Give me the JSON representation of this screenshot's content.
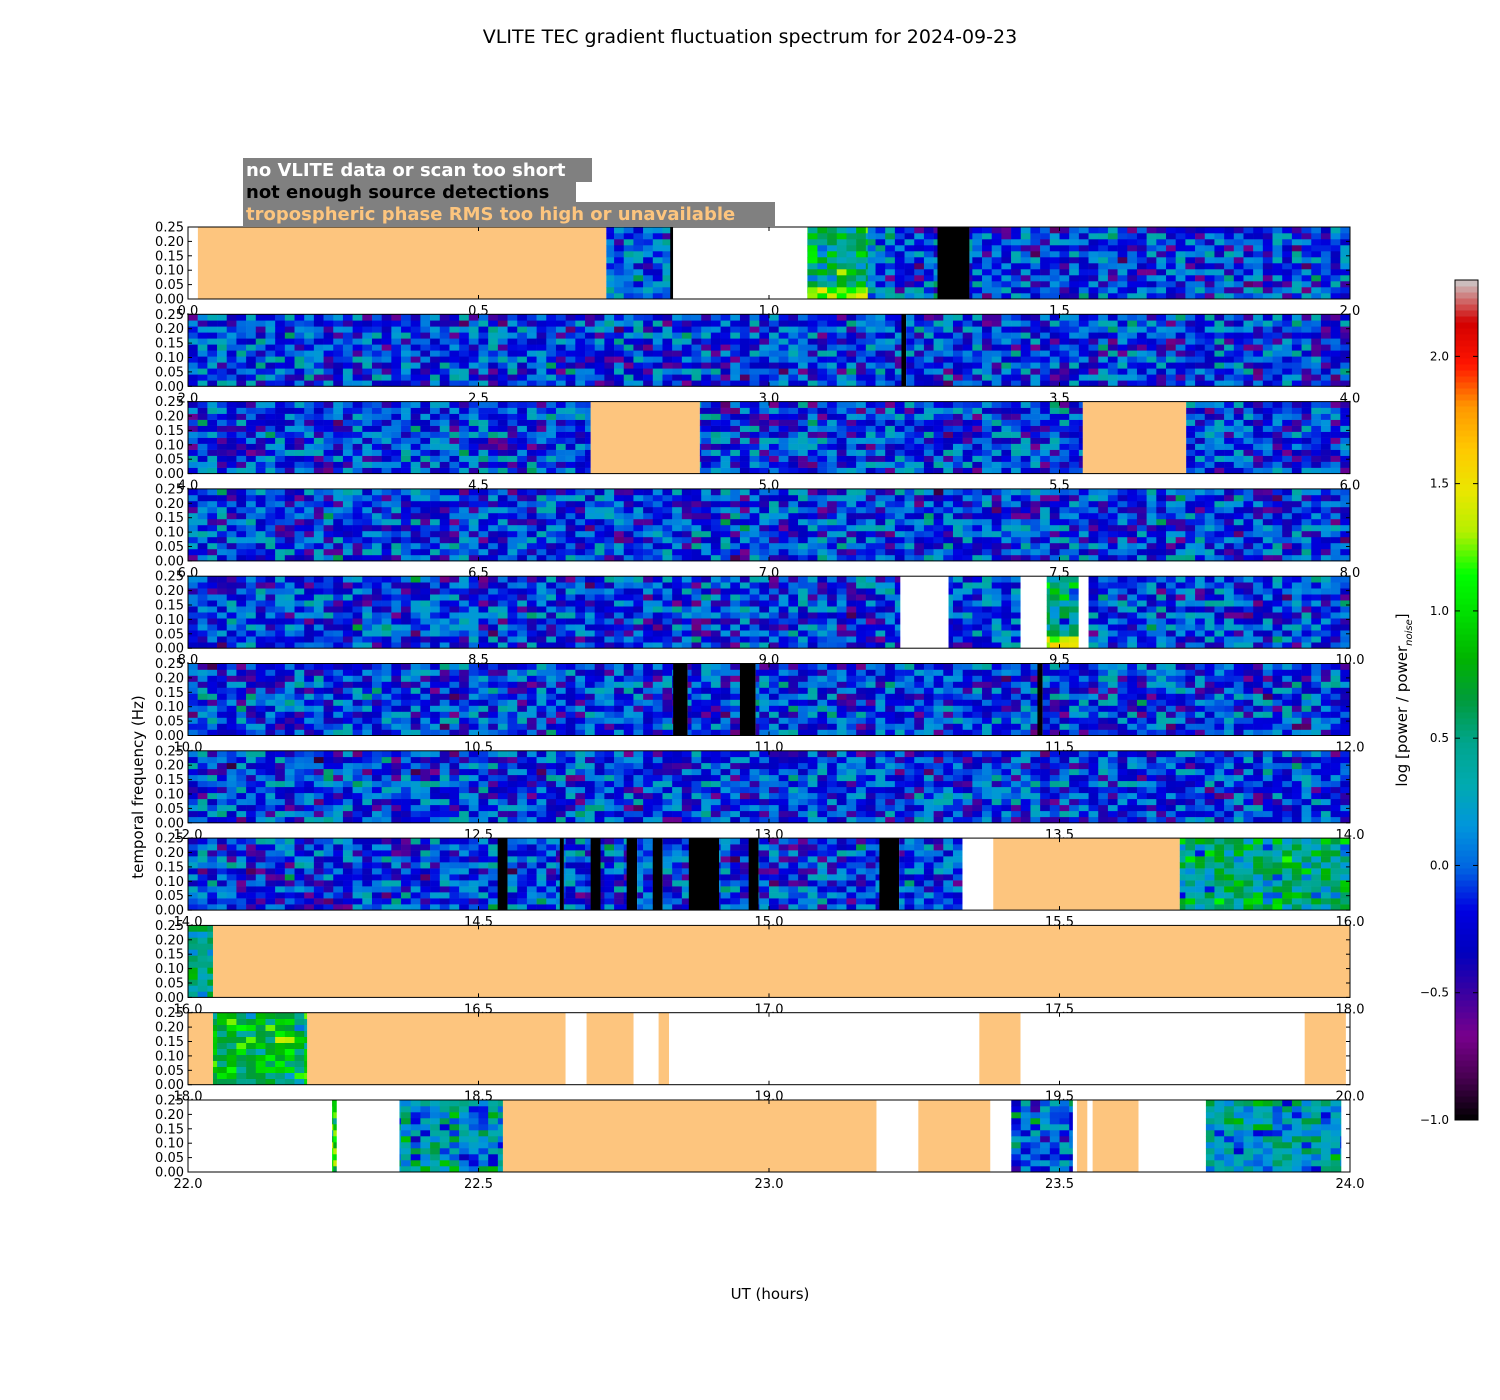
{
  "chart_data": {
    "type": "heatmap",
    "title": "VLITE TEC gradient fluctuation spectrum for 2024-09-23",
    "xlabel": "UT (hours)",
    "ylabel": "temporal frequency (Hz)",
    "ylim": [
      0,
      0.25
    ],
    "y_ticks": [
      "0.00",
      "0.05",
      "0.10",
      "0.15",
      "0.20",
      "0.25"
    ],
    "colorbar": {
      "label": "log [power / power",
      "label_subscript": "noise",
      "label_suffix": "]",
      "range": [
        -1.0,
        2.3
      ],
      "ticks": [
        "−1.0",
        "−0.5",
        "0.0",
        "0.5",
        "1.0",
        "1.5",
        "2.0"
      ],
      "tick_values": [
        -1.0,
        -0.5,
        0.0,
        0.5,
        1.0,
        1.5,
        2.0
      ]
    },
    "legend": {
      "placement": "top-left",
      "background": "#808080",
      "entries": [
        {
          "label": "no VLITE data or scan too short",
          "color": "#ffffff",
          "category": "no_data"
        },
        {
          "label": "not enough source detections",
          "color": "#000000",
          "category": "few_detections"
        },
        {
          "label": "tropospheric phase RMS too high or unavailable",
          "color": "#fdc57e",
          "category": "tropo"
        }
      ]
    },
    "panels": [
      {
        "x_range": [
          0,
          2
        ],
        "x_ticks": [
          "0.0",
          "0.5",
          "1.0",
          "1.5",
          "2.0"
        ],
        "segments": [
          {
            "start": 0.0,
            "end": 0.017,
            "state": "no_data"
          },
          {
            "start": 0.017,
            "end": 0.72,
            "state": "tropo"
          },
          {
            "start": 0.72,
            "end": 0.83,
            "state": "data",
            "level": 0.0
          },
          {
            "start": 0.83,
            "end": 0.835,
            "state": "few_detections"
          },
          {
            "start": 0.835,
            "end": 1.066,
            "state": "no_data"
          },
          {
            "start": 1.066,
            "end": 1.17,
            "state": "data",
            "level": 0.6,
            "hot_low": 1.2
          },
          {
            "start": 1.17,
            "end": 1.29,
            "state": "data",
            "level": 0.0
          },
          {
            "start": 1.29,
            "end": 1.345,
            "state": "few_detections"
          },
          {
            "start": 1.345,
            "end": 2.0,
            "state": "data",
            "level": -0.1
          }
        ]
      },
      {
        "x_range": [
          2,
          4
        ],
        "x_ticks": [
          "2.0",
          "2.5",
          "3.0",
          "3.5",
          "4.0"
        ],
        "segments": [
          {
            "start": 2.0,
            "end": 3.228,
            "state": "data",
            "level": -0.1
          },
          {
            "start": 3.228,
            "end": 3.236,
            "state": "few_detections"
          },
          {
            "start": 3.236,
            "end": 4.0,
            "state": "data",
            "level": -0.1
          }
        ]
      },
      {
        "x_range": [
          4,
          6
        ],
        "x_ticks": [
          "4.0",
          "4.5",
          "5.0",
          "5.5",
          "6.0"
        ],
        "segments": [
          {
            "start": 4.0,
            "end": 4.693,
            "state": "data",
            "level": -0.1
          },
          {
            "start": 4.693,
            "end": 4.881,
            "state": "tropo"
          },
          {
            "start": 4.881,
            "end": 5.54,
            "state": "data",
            "level": -0.1
          },
          {
            "start": 5.54,
            "end": 5.718,
            "state": "tropo"
          },
          {
            "start": 5.718,
            "end": 6.0,
            "state": "data",
            "level": -0.1
          }
        ]
      },
      {
        "x_range": [
          6,
          8
        ],
        "x_ticks": [
          "6.0",
          "6.5",
          "7.0",
          "7.5",
          "8.0"
        ],
        "segments": [
          {
            "start": 6.0,
            "end": 8.0,
            "state": "data",
            "level": -0.1
          }
        ]
      },
      {
        "x_range": [
          8,
          10
        ],
        "x_ticks": [
          "8.0",
          "8.5",
          "9.0",
          "9.5",
          "10.0"
        ],
        "segments": [
          {
            "start": 8.0,
            "end": 9.226,
            "state": "data",
            "level": -0.1
          },
          {
            "start": 9.226,
            "end": 9.309,
            "state": "no_data"
          },
          {
            "start": 9.309,
            "end": 9.433,
            "state": "data",
            "level": 0.0
          },
          {
            "start": 9.433,
            "end": 9.478,
            "state": "no_data"
          },
          {
            "start": 9.478,
            "end": 9.533,
            "state": "data",
            "level": 0.5,
            "hot_low": 1.5
          },
          {
            "start": 9.533,
            "end": 9.55,
            "state": "no_data"
          },
          {
            "start": 9.55,
            "end": 10.0,
            "state": "data",
            "level": -0.1
          }
        ]
      },
      {
        "x_range": [
          10,
          12
        ],
        "x_ticks": [
          "10.0",
          "10.5",
          "11.0",
          "11.5",
          "12.0"
        ],
        "segments": [
          {
            "start": 10.0,
            "end": 10.835,
            "state": "data",
            "level": -0.1
          },
          {
            "start": 10.835,
            "end": 10.86,
            "state": "few_detections"
          },
          {
            "start": 10.86,
            "end": 10.95,
            "state": "data",
            "level": -0.1
          },
          {
            "start": 10.95,
            "end": 10.977,
            "state": "few_detections"
          },
          {
            "start": 10.977,
            "end": 11.462,
            "state": "data",
            "level": -0.1
          },
          {
            "start": 11.462,
            "end": 11.471,
            "state": "few_detections"
          },
          {
            "start": 11.471,
            "end": 12.0,
            "state": "data",
            "level": -0.1
          }
        ]
      },
      {
        "x_range": [
          12,
          14
        ],
        "x_ticks": [
          "12.0",
          "12.5",
          "13.0",
          "13.5",
          "14.0"
        ],
        "segments": [
          {
            "start": 12.0,
            "end": 14.0,
            "state": "data",
            "level": -0.1
          }
        ]
      },
      {
        "x_range": [
          14,
          16
        ],
        "x_ticks": [
          "14.0",
          "14.5",
          "15.0",
          "15.5",
          "16.0"
        ],
        "segments": [
          {
            "start": 14.0,
            "end": 14.533,
            "state": "data",
            "level": -0.1
          },
          {
            "start": 14.533,
            "end": 14.55,
            "state": "few_detections"
          },
          {
            "start": 14.55,
            "end": 14.64,
            "state": "data",
            "level": -0.1
          },
          {
            "start": 14.64,
            "end": 14.647,
            "state": "few_detections"
          },
          {
            "start": 14.647,
            "end": 14.693,
            "state": "data",
            "level": -0.1
          },
          {
            "start": 14.693,
            "end": 14.71,
            "state": "few_detections"
          },
          {
            "start": 14.71,
            "end": 14.755,
            "state": "data",
            "level": -0.1
          },
          {
            "start": 14.755,
            "end": 14.773,
            "state": "few_detections"
          },
          {
            "start": 14.773,
            "end": 14.8,
            "state": "data",
            "level": -0.1
          },
          {
            "start": 14.8,
            "end": 14.817,
            "state": "few_detections"
          },
          {
            "start": 14.817,
            "end": 14.862,
            "state": "data",
            "level": -0.1
          },
          {
            "start": 14.862,
            "end": 14.914,
            "state": "few_detections"
          },
          {
            "start": 14.914,
            "end": 14.965,
            "state": "data",
            "level": -0.1
          },
          {
            "start": 14.965,
            "end": 14.982,
            "state": "few_detections"
          },
          {
            "start": 14.982,
            "end": 15.19,
            "state": "data",
            "level": -0.1
          },
          {
            "start": 15.19,
            "end": 15.224,
            "state": "few_detections"
          },
          {
            "start": 15.224,
            "end": 15.333,
            "state": "data",
            "level": -0.1
          },
          {
            "start": 15.333,
            "end": 15.386,
            "state": "no_data"
          },
          {
            "start": 15.386,
            "end": 15.707,
            "state": "tropo"
          },
          {
            "start": 15.707,
            "end": 16.0,
            "state": "data",
            "level": 0.5
          }
        ]
      },
      {
        "x_range": [
          16,
          18
        ],
        "x_ticks": [
          "16.0",
          "16.5",
          "17.0",
          "17.5",
          "18.0"
        ],
        "segments": [
          {
            "start": 16.0,
            "end": 16.043,
            "state": "data",
            "level": 0.4
          },
          {
            "start": 16.043,
            "end": 18.0,
            "state": "tropo"
          }
        ]
      },
      {
        "x_range": [
          18,
          20
        ],
        "x_ticks": [
          "18.0",
          "18.5",
          "19.0",
          "19.5",
          "20.0"
        ],
        "segments": [
          {
            "start": 18.0,
            "end": 18.043,
            "state": "tropo"
          },
          {
            "start": 18.043,
            "end": 18.205,
            "state": "data",
            "level": 0.8
          },
          {
            "start": 18.205,
            "end": 18.65,
            "state": "tropo"
          },
          {
            "start": 18.65,
            "end": 18.686,
            "state": "no_data"
          },
          {
            "start": 18.686,
            "end": 18.767,
            "state": "tropo"
          },
          {
            "start": 18.767,
            "end": 18.81,
            "state": "no_data"
          },
          {
            "start": 18.81,
            "end": 18.828,
            "state": "tropo"
          },
          {
            "start": 18.828,
            "end": 19.362,
            "state": "no_data"
          },
          {
            "start": 19.362,
            "end": 19.433,
            "state": "tropo"
          },
          {
            "start": 19.433,
            "end": 19.922,
            "state": "no_data"
          },
          {
            "start": 19.922,
            "end": 19.993,
            "state": "tropo"
          },
          {
            "start": 19.993,
            "end": 20.0,
            "state": "no_data"
          }
        ]
      },
      {
        "x_range": [
          22,
          24
        ],
        "x_ticks": [
          "22.0",
          "22.5",
          "23.0",
          "23.5",
          "24.0"
        ],
        "segments": [
          {
            "start": 22.0,
            "end": 22.248,
            "state": "no_data"
          },
          {
            "start": 22.248,
            "end": 22.256,
            "state": "data",
            "level": 0.9
          },
          {
            "start": 22.256,
            "end": 22.364,
            "state": "no_data"
          },
          {
            "start": 22.364,
            "end": 22.542,
            "state": "data",
            "level": 0.25
          },
          {
            "start": 22.542,
            "end": 23.185,
            "state": "tropo"
          },
          {
            "start": 23.185,
            "end": 23.257,
            "state": "no_data"
          },
          {
            "start": 23.257,
            "end": 23.381,
            "state": "tropo"
          },
          {
            "start": 23.381,
            "end": 23.417,
            "state": "no_data"
          },
          {
            "start": 23.417,
            "end": 23.523,
            "state": "data",
            "level": 0.0
          },
          {
            "start": 23.523,
            "end": 23.53,
            "state": "no_data"
          },
          {
            "start": 23.53,
            "end": 23.548,
            "state": "tropo"
          },
          {
            "start": 23.548,
            "end": 23.557,
            "state": "no_data"
          },
          {
            "start": 23.557,
            "end": 23.636,
            "state": "tropo"
          },
          {
            "start": 23.636,
            "end": 23.752,
            "state": "no_data"
          },
          {
            "start": 23.752,
            "end": 23.985,
            "state": "data",
            "level": 0.3
          },
          {
            "start": 23.985,
            "end": 24.0,
            "state": "no_data"
          }
        ]
      }
    ]
  }
}
